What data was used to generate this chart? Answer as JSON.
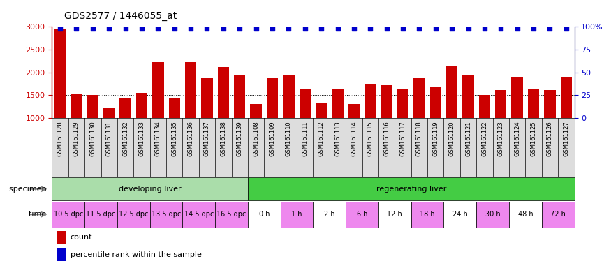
{
  "title": "GDS2577 / 1446055_at",
  "samples": [
    "GSM161128",
    "GSM161129",
    "GSM161130",
    "GSM161131",
    "GSM161132",
    "GSM161133",
    "GSM161134",
    "GSM161135",
    "GSM161136",
    "GSM161137",
    "GSM161138",
    "GSM161139",
    "GSM161108",
    "GSM161109",
    "GSM161110",
    "GSM161111",
    "GSM161112",
    "GSM161113",
    "GSM161114",
    "GSM161115",
    "GSM161116",
    "GSM161117",
    "GSM161118",
    "GSM161119",
    "GSM161120",
    "GSM161121",
    "GSM161122",
    "GSM161123",
    "GSM161124",
    "GSM161125",
    "GSM161126",
    "GSM161127"
  ],
  "counts": [
    2950,
    1525,
    1500,
    1210,
    1440,
    1555,
    2220,
    1450,
    2220,
    1870,
    2110,
    1930,
    1310,
    1870,
    1950,
    1640,
    1340,
    1650,
    1300,
    1750,
    1720,
    1650,
    1870,
    1670,
    2150,
    1930,
    1500,
    1610,
    1890,
    1620,
    1610,
    1900
  ],
  "percentile_ranks": [
    100,
    100,
    100,
    100,
    100,
    100,
    100,
    100,
    100,
    100,
    100,
    100,
    100,
    100,
    100,
    100,
    100,
    100,
    100,
    100,
    100,
    100,
    100,
    100,
    100,
    100,
    100,
    100,
    100,
    100,
    100,
    100
  ],
  "ylim_left": [
    1000,
    3000
  ],
  "ylim_right": [
    0,
    100
  ],
  "yticks_left": [
    1000,
    1500,
    2000,
    2500,
    3000
  ],
  "yticks_right": [
    0,
    25,
    50,
    75,
    100
  ],
  "bar_color": "#cc0000",
  "dot_color": "#0000cc",
  "bg_color": "#ffffff",
  "plot_bg_color": "#ffffff",
  "specimen_groups": [
    {
      "label": "developing liver",
      "start": 0,
      "end": 12,
      "color": "#aaddaa"
    },
    {
      "label": "regenerating liver",
      "start": 12,
      "end": 32,
      "color": "#44cc44"
    }
  ],
  "time_labels_developing": [
    {
      "label": "10.5 dpc",
      "start": 0,
      "end": 2,
      "bg": "#ee88ee"
    },
    {
      "label": "11.5 dpc",
      "start": 2,
      "end": 4,
      "bg": "#ee88ee"
    },
    {
      "label": "12.5 dpc",
      "start": 4,
      "end": 6,
      "bg": "#ee88ee"
    },
    {
      "label": "13.5 dpc",
      "start": 6,
      "end": 8,
      "bg": "#ee88ee"
    },
    {
      "label": "14.5 dpc",
      "start": 8,
      "end": 10,
      "bg": "#ee88ee"
    },
    {
      "label": "16.5 dpc",
      "start": 10,
      "end": 12,
      "bg": "#ee88ee"
    }
  ],
  "time_labels_regenerating": [
    {
      "label": "0 h",
      "start": 12,
      "end": 14,
      "bg": "#ffffff"
    },
    {
      "label": "1 h",
      "start": 14,
      "end": 16,
      "bg": "#ee88ee"
    },
    {
      "label": "2 h",
      "start": 16,
      "end": 18,
      "bg": "#ffffff"
    },
    {
      "label": "6 h",
      "start": 18,
      "end": 20,
      "bg": "#ee88ee"
    },
    {
      "label": "12 h",
      "start": 20,
      "end": 22,
      "bg": "#ffffff"
    },
    {
      "label": "18 h",
      "start": 22,
      "end": 24,
      "bg": "#ee88ee"
    },
    {
      "label": "24 h",
      "start": 24,
      "end": 26,
      "bg": "#ffffff"
    },
    {
      "label": "30 h",
      "start": 26,
      "end": 28,
      "bg": "#ee88ee"
    },
    {
      "label": "48 h",
      "start": 28,
      "end": 30,
      "bg": "#ffffff"
    },
    {
      "label": "72 h",
      "start": 30,
      "end": 32,
      "bg": "#ee88ee"
    }
  ],
  "legend_count_label": "count",
  "legend_pct_label": "percentile rank within the sample"
}
